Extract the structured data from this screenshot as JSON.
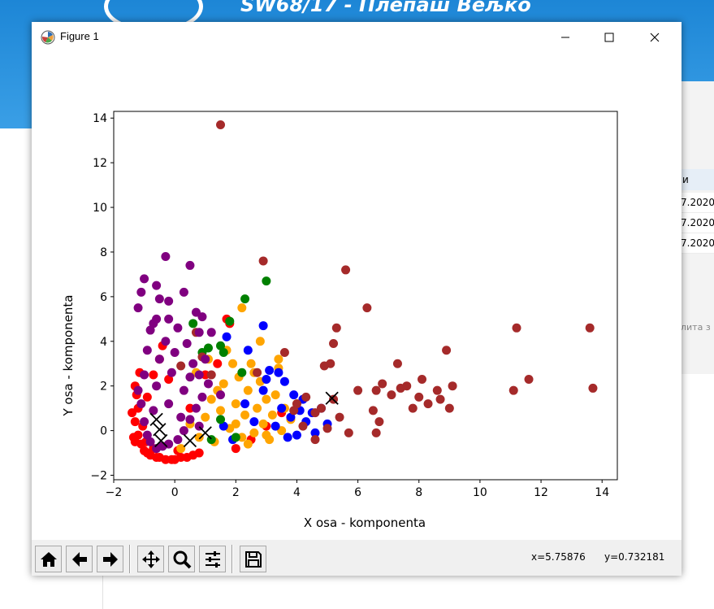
{
  "background": {
    "banner_title": "SW68/17 - Плепаш Вељко",
    "right_panel": {
      "header": "и",
      "dates": [
        "7.2020",
        "7.2020",
        "7.2020"
      ],
      "hint": "лита з"
    },
    "banner_color": "#2a93df"
  },
  "window": {
    "title": "Figure 1",
    "controls": [
      "minimize-icon",
      "maximize-icon",
      "close-icon"
    ]
  },
  "toolbar": {
    "buttons": [
      "home-icon",
      "back-arrow-icon",
      "forward-arrow-icon",
      "pan-icon",
      "zoom-icon",
      "configure-subplots-icon",
      "save-icon"
    ],
    "coords": {
      "x": "x=5.75876",
      "y": "y=0.732181"
    }
  },
  "chart_data": {
    "type": "scatter",
    "title": "",
    "xlabel": "X osa - komponenta",
    "ylabel": "Y osa - komponenta",
    "xlim": [
      -2,
      14.5
    ],
    "ylim": [
      -2.2,
      14.3
    ],
    "xticks": [
      -2,
      0,
      2,
      4,
      6,
      8,
      10,
      12,
      14
    ],
    "yticks": [
      -2,
      0,
      2,
      4,
      6,
      8,
      10,
      12,
      14
    ],
    "grid": false,
    "series": [
      {
        "color": "#ff0000",
        "points": [
          [
            -1.3,
            2.0
          ],
          [
            -1.2,
            1.0
          ],
          [
            -1.3,
            0.4
          ],
          [
            -1.2,
            -0.2
          ],
          [
            -1.1,
            -0.6
          ],
          [
            -1.0,
            -0.9
          ],
          [
            -0.9,
            1.5
          ],
          [
            -0.9,
            -1.0
          ],
          [
            -0.8,
            -1.1
          ],
          [
            -0.7,
            2.5
          ],
          [
            -0.6,
            -1.2
          ],
          [
            -0.5,
            3.2
          ],
          [
            -0.5,
            -1.2
          ],
          [
            -0.4,
            3.8
          ],
          [
            -0.3,
            -1.3
          ],
          [
            -0.2,
            2.3
          ],
          [
            -0.1,
            -1.3
          ],
          [
            0.0,
            -1.3
          ],
          [
            0.2,
            -1.2
          ],
          [
            0.4,
            -1.2
          ],
          [
            0.6,
            -1.1
          ],
          [
            0.8,
            -1.0
          ],
          [
            -1.4,
            0.8
          ],
          [
            -1.35,
            -0.3
          ],
          [
            -1.25,
            1.6
          ],
          [
            -1.15,
            2.6
          ],
          [
            -1.05,
            0.2
          ],
          [
            -0.95,
            -0.5
          ],
          [
            1.8,
            4.8
          ],
          [
            1.7,
            5.0
          ],
          [
            1.0,
            2.5
          ],
          [
            1.4,
            3.0
          ],
          [
            2.0,
            -0.8
          ],
          [
            2.5,
            -0.4
          ],
          [
            3.0,
            0.2
          ],
          [
            3.5,
            0.8
          ],
          [
            0.5,
            1.0
          ],
          [
            -1.3,
            -0.5
          ],
          [
            -0.7,
            -0.8
          ],
          [
            0.1,
            -0.9
          ]
        ]
      },
      {
        "color": "#ffa500",
        "points": [
          [
            0.2,
            -0.8
          ],
          [
            0.5,
            0.3
          ],
          [
            0.8,
            -0.3
          ],
          [
            1.0,
            0.6
          ],
          [
            1.2,
            1.4
          ],
          [
            1.3,
            -0.5
          ],
          [
            1.5,
            0.9
          ],
          [
            1.6,
            2.1
          ],
          [
            1.8,
            0.1
          ],
          [
            2.0,
            1.2
          ],
          [
            2.1,
            2.4
          ],
          [
            2.2,
            -0.3
          ],
          [
            2.3,
            0.7
          ],
          [
            2.4,
            1.8
          ],
          [
            2.5,
            3.0
          ],
          [
            2.6,
            -0.1
          ],
          [
            2.7,
            1.0
          ],
          [
            2.8,
            2.2
          ],
          [
            2.9,
            0.3
          ],
          [
            3.0,
            1.4
          ],
          [
            3.1,
            -0.4
          ],
          [
            3.2,
            0.7
          ],
          [
            3.3,
            1.6
          ],
          [
            3.4,
            2.8
          ],
          [
            3.5,
            0.0
          ],
          [
            3.6,
            1.0
          ],
          [
            3.8,
            0.5
          ],
          [
            4.0,
            1.2
          ],
          [
            1.9,
            3.0
          ],
          [
            2.2,
            5.5
          ],
          [
            2.8,
            4.0
          ],
          [
            3.4,
            3.2
          ],
          [
            1.7,
            3.6
          ],
          [
            1.1,
            3.2
          ],
          [
            2.6,
            2.6
          ],
          [
            1.4,
            1.8
          ],
          [
            0.7,
            2.6
          ],
          [
            2.4,
            -0.6
          ],
          [
            3.0,
            -0.2
          ],
          [
            2.0,
            0.3
          ]
        ]
      },
      {
        "color": "#0000ff",
        "points": [
          [
            1.6,
            0.2
          ],
          [
            1.9,
            -0.4
          ],
          [
            2.3,
            1.2
          ],
          [
            2.6,
            0.4
          ],
          [
            2.9,
            1.8
          ],
          [
            3.1,
            2.7
          ],
          [
            3.3,
            0.2
          ],
          [
            3.5,
            1.0
          ],
          [
            3.6,
            2.2
          ],
          [
            3.7,
            -0.3
          ],
          [
            3.8,
            0.6
          ],
          [
            3.9,
            1.6
          ],
          [
            4.0,
            -0.2
          ],
          [
            4.1,
            0.9
          ],
          [
            4.2,
            1.4
          ],
          [
            4.3,
            0.4
          ],
          [
            4.5,
            0.8
          ],
          [
            4.6,
            -0.1
          ],
          [
            4.8,
            1.0
          ],
          [
            5.0,
            0.3
          ],
          [
            2.9,
            4.7
          ],
          [
            1.7,
            4.2
          ],
          [
            2.4,
            3.6
          ],
          [
            3.4,
            2.6
          ],
          [
            3.0,
            2.3
          ]
        ]
      },
      {
        "color": "#008000",
        "points": [
          [
            0.6,
            4.8
          ],
          [
            0.9,
            3.5
          ],
          [
            1.1,
            3.7
          ],
          [
            1.5,
            3.8
          ],
          [
            1.8,
            4.9
          ],
          [
            2.2,
            2.6
          ],
          [
            2.3,
            5.9
          ],
          [
            3.0,
            6.7
          ],
          [
            1.5,
            0.5
          ],
          [
            2.0,
            -0.3
          ],
          [
            1.2,
            -0.4
          ],
          [
            1.6,
            3.5
          ]
        ]
      },
      {
        "color": "#a52a2a",
        "points": [
          [
            1.5,
            13.7
          ],
          [
            2.9,
            7.6
          ],
          [
            3.6,
            3.5
          ],
          [
            4.0,
            1.2
          ],
          [
            4.3,
            1.5
          ],
          [
            4.6,
            0.8
          ],
          [
            4.8,
            1.0
          ],
          [
            5.0,
            0.1
          ],
          [
            5.1,
            3.0
          ],
          [
            5.2,
            1.4
          ],
          [
            5.2,
            3.9
          ],
          [
            5.3,
            4.6
          ],
          [
            5.4,
            0.6
          ],
          [
            5.6,
            7.2
          ],
          [
            5.7,
            -0.1
          ],
          [
            6.0,
            1.8
          ],
          [
            6.3,
            5.5
          ],
          [
            6.5,
            0.9
          ],
          [
            6.6,
            1.8
          ],
          [
            6.6,
            -0.1
          ],
          [
            6.7,
            0.4
          ],
          [
            6.8,
            2.1
          ],
          [
            7.1,
            1.6
          ],
          [
            7.3,
            3.0
          ],
          [
            7.4,
            1.9
          ],
          [
            7.6,
            2.0
          ],
          [
            7.8,
            1.0
          ],
          [
            8.0,
            1.5
          ],
          [
            8.1,
            2.3
          ],
          [
            8.3,
            1.2
          ],
          [
            8.6,
            1.8
          ],
          [
            8.7,
            1.4
          ],
          [
            8.9,
            3.6
          ],
          [
            9.0,
            1.0
          ],
          [
            9.1,
            2.0
          ],
          [
            11.1,
            1.8
          ],
          [
            11.2,
            4.6
          ],
          [
            11.6,
            2.3
          ],
          [
            13.6,
            4.6
          ],
          [
            13.7,
            1.9
          ],
          [
            4.9,
            2.9
          ],
          [
            4.6,
            -0.4
          ],
          [
            4.2,
            0.2
          ],
          [
            3.9,
            0.9
          ],
          [
            2.7,
            2.6
          ],
          [
            1.2,
            2.5
          ],
          [
            0.9,
            3.3
          ],
          [
            0.2,
            2.9
          ],
          [
            0.7,
            4.4
          ]
        ]
      },
      {
        "color": "#800080",
        "points": [
          [
            -1.2,
            5.5
          ],
          [
            -1.1,
            6.2
          ],
          [
            -1.0,
            6.8
          ],
          [
            -0.6,
            6.5
          ],
          [
            -0.5,
            5.9
          ],
          [
            -0.3,
            7.8
          ],
          [
            -0.2,
            5.8
          ],
          [
            0.3,
            6.2
          ],
          [
            0.5,
            7.4
          ],
          [
            0.7,
            5.3
          ],
          [
            0.9,
            5.1
          ],
          [
            1.5,
            1.6
          ],
          [
            -0.6,
            5.0
          ],
          [
            -0.2,
            5.0
          ],
          [
            -0.7,
            4.8
          ],
          [
            -0.8,
            4.5
          ],
          [
            0.8,
            4.4
          ],
          [
            0.4,
            3.9
          ],
          [
            0.6,
            3.0
          ],
          [
            0.8,
            2.5
          ],
          [
            1.0,
            3.2
          ],
          [
            1.2,
            4.4
          ],
          [
            -0.9,
            3.6
          ],
          [
            -1.0,
            2.5
          ],
          [
            -1.2,
            1.8
          ],
          [
            -1.1,
            1.2
          ],
          [
            -1.0,
            0.4
          ],
          [
            -0.9,
            -0.2
          ],
          [
            -0.8,
            -0.5
          ],
          [
            -0.6,
            -0.8
          ],
          [
            -0.4,
            -0.7
          ],
          [
            -0.2,
            -0.6
          ],
          [
            0.1,
            -0.4
          ],
          [
            0.3,
            0.0
          ],
          [
            0.5,
            0.5
          ],
          [
            0.7,
            1.0
          ],
          [
            0.9,
            1.5
          ],
          [
            1.1,
            2.1
          ],
          [
            0.3,
            1.8
          ],
          [
            -0.1,
            2.6
          ],
          [
            -0.5,
            3.2
          ],
          [
            -0.3,
            4.0
          ],
          [
            0.1,
            4.6
          ],
          [
            -0.6,
            2.0
          ],
          [
            -0.2,
            1.2
          ],
          [
            0.2,
            0.6
          ],
          [
            0.5,
            2.4
          ],
          [
            0.8,
            0.2
          ],
          [
            -0.7,
            0.9
          ],
          [
            0.0,
            3.5
          ]
        ]
      },
      {
        "color": "#000000",
        "marker": "x",
        "points": [
          [
            -0.6,
            0.5
          ],
          [
            -0.5,
            0.05
          ],
          [
            -0.45,
            -0.45
          ],
          [
            0.5,
            -0.45
          ],
          [
            1.0,
            -0.1
          ],
          [
            5.15,
            1.45
          ]
        ]
      }
    ]
  }
}
